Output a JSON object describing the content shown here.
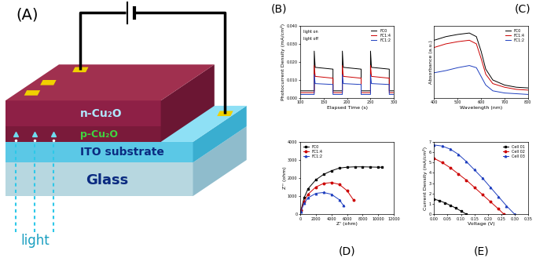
{
  "panel_labels": [
    "(A)",
    "(B)",
    "(C)",
    "(D)",
    "(E)"
  ],
  "diagram": {
    "layers": [
      "n-Cu₂O",
      "p-Cu₂O",
      "ITO substrate",
      "Glass"
    ],
    "light": "light"
  },
  "chart_data": [
    {
      "type": "line",
      "xlabel": "Elapsed Time (s)",
      "ylabel": "Photocurrent Density (mA/cm²)",
      "x": [
        100,
        130,
        130,
        132,
        170,
        170,
        172,
        190,
        190,
        192,
        230,
        230,
        232,
        250,
        250,
        252,
        290,
        290,
        292,
        300
      ],
      "series": [
        {
          "name": "FC0",
          "color": "#000000",
          "values": [
            0.004,
            0.004,
            0.026,
            0.017,
            0.016,
            0.004,
            0.004,
            0.004,
            0.026,
            0.017,
            0.016,
            0.004,
            0.004,
            0.004,
            0.026,
            0.017,
            0.016,
            0.004,
            0.004,
            0.004
          ]
        },
        {
          "name": "FC1:4",
          "color": "#cc0000",
          "values": [
            0.003,
            0.003,
            0.018,
            0.012,
            0.011,
            0.003,
            0.003,
            0.003,
            0.018,
            0.012,
            0.011,
            0.003,
            0.003,
            0.003,
            0.018,
            0.012,
            0.011,
            0.003,
            0.003,
            0.003
          ]
        },
        {
          "name": "FC1:2",
          "color": "#1f3fbf",
          "values": [
            0.002,
            0.002,
            0.013,
            0.008,
            0.0075,
            0.002,
            0.002,
            0.002,
            0.013,
            0.008,
            0.0075,
            0.002,
            0.002,
            0.002,
            0.013,
            0.008,
            0.0075,
            0.002,
            0.002,
            0.002
          ]
        }
      ],
      "xlim": [
        100,
        300
      ],
      "xticks": [
        100,
        150,
        200,
        250,
        300
      ],
      "ylim": [
        0,
        0.04
      ],
      "yticks": [
        {
          "value": 0,
          "label": "0.000"
        },
        {
          "value": 0.01,
          "label": "0.010"
        },
        {
          "value": 0.02,
          "label": "0.020"
        },
        {
          "value": 0.03,
          "label": "0.030"
        },
        {
          "value": 0.04,
          "label": "0.040"
        }
      ],
      "annotations": [
        "light on",
        "light off"
      ],
      "legend": "upper right"
    },
    {
      "type": "line",
      "xlabel": "Wavelength (nm)",
      "ylabel": "Absorbance (a.u.)",
      "x": [
        400,
        450,
        500,
        550,
        580,
        600,
        620,
        650,
        700,
        750,
        800
      ],
      "series": [
        {
          "name": "FC0",
          "color": "#000000",
          "values": [
            0.8,
            0.85,
            0.88,
            0.9,
            0.85,
            0.65,
            0.4,
            0.25,
            0.18,
            0.15,
            0.14
          ]
        },
        {
          "name": "FC1:4",
          "color": "#cc0000",
          "values": [
            0.7,
            0.75,
            0.78,
            0.8,
            0.75,
            0.55,
            0.33,
            0.2,
            0.15,
            0.12,
            0.11
          ]
        },
        {
          "name": "FC1:2",
          "color": "#1f3fbf",
          "values": [
            0.35,
            0.38,
            0.42,
            0.45,
            0.42,
            0.3,
            0.18,
            0.1,
            0.07,
            0.06,
            0.05
          ]
        }
      ],
      "xlim": [
        400,
        800
      ],
      "xticks": [
        400,
        500,
        600,
        700,
        800
      ],
      "ylim": [
        0,
        1
      ],
      "tick_labels": "x",
      "legend": "upper right"
    },
    {
      "type": "line",
      "xlabel": "Z' (ohm)",
      "ylabel": "Z'' (ohm)",
      "series": [
        {
          "name": "FC0",
          "color": "#000000",
          "marker": "square",
          "x": [
            100,
            500,
            1000,
            2000,
            3000,
            4000,
            5000,
            6000,
            7000,
            8000,
            9000,
            10000,
            10500
          ],
          "values": [
            200,
            900,
            1400,
            1900,
            2200,
            2400,
            2550,
            2600,
            2620,
            2620,
            2610,
            2600,
            2600
          ]
        },
        {
          "name": "FC1:4",
          "color": "#cc0000",
          "marker": "circle",
          "x": [
            100,
            500,
            1000,
            2000,
            3000,
            4000,
            5000,
            6000,
            6800
          ],
          "values": [
            200,
            700,
            1100,
            1500,
            1700,
            1750,
            1650,
            1300,
            800
          ]
        },
        {
          "name": "FC1:2",
          "color": "#1f3fbf",
          "marker": "triangle",
          "x": [
            100,
            500,
            1000,
            2000,
            3000,
            4000,
            5000,
            5500
          ],
          "values": [
            150,
            600,
            900,
            1150,
            1200,
            1100,
            800,
            500
          ]
        }
      ],
      "xlim": [
        0,
        12000
      ],
      "xticks": [
        0,
        2000,
        4000,
        6000,
        8000,
        10000,
        12000
      ],
      "ylim": [
        0,
        4000
      ],
      "yticks": [
        0,
        1000,
        2000,
        3000,
        4000
      ],
      "legend": "upper left"
    },
    {
      "type": "line",
      "xlabel": "Voltage (V)",
      "ylabel": "Current Density (mA/cm²)",
      "series": [
        {
          "name": "Cell 01",
          "color": "#000000",
          "marker": "square",
          "x": [
            0,
            0.02,
            0.04,
            0.06,
            0.08,
            0.1,
            0.12
          ],
          "values": [
            1.45,
            1.3,
            1.1,
            0.85,
            0.6,
            0.3,
            0.0
          ]
        },
        {
          "name": "Cell 02",
          "color": "#cc0000",
          "marker": "circle",
          "x": [
            0,
            0.03,
            0.06,
            0.09,
            0.12,
            0.15,
            0.18,
            0.21,
            0.24,
            0.26
          ],
          "values": [
            5.4,
            5.0,
            4.5,
            3.9,
            3.3,
            2.6,
            1.9,
            1.2,
            0.5,
            0.0
          ]
        },
        {
          "name": "Cell 03",
          "color": "#1f3fbf",
          "marker": "triangle",
          "x": [
            0,
            0.03,
            0.06,
            0.09,
            0.12,
            0.15,
            0.18,
            0.21,
            0.24,
            0.27,
            0.3
          ],
          "values": [
            6.7,
            6.6,
            6.3,
            5.8,
            5.1,
            4.3,
            3.5,
            2.6,
            1.7,
            0.8,
            0.0
          ]
        }
      ],
      "xlim": [
        0,
        0.35
      ],
      "xticks": [
        {
          "value": 0,
          "label": "0.00"
        },
        {
          "value": 0.05,
          "label": "0.05"
        },
        {
          "value": 0.1,
          "label": "0.10"
        },
        {
          "value": 0.15,
          "label": "0.15"
        },
        {
          "value": 0.2,
          "label": "0.20"
        },
        {
          "value": 0.25,
          "label": "0.25"
        },
        {
          "value": 0.3,
          "label": "0.30"
        },
        {
          "value": 0.35,
          "label": "0.35"
        }
      ],
      "ylim": [
        0,
        7
      ],
      "yticks": [
        0,
        1,
        2,
        3,
        4,
        5,
        6,
        7
      ],
      "legend": "upper right"
    }
  ]
}
